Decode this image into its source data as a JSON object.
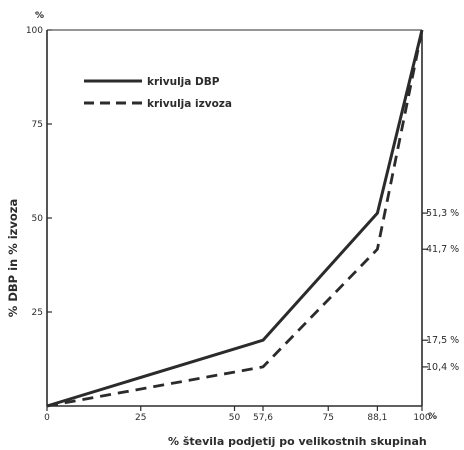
{
  "chart_data": {
    "type": "line",
    "title": "",
    "xlabel": "% števila podjetij po velikostnih skupinah",
    "ylabel": "% DBP in % izvoza",
    "x_unit": "%",
    "y_unit": "%",
    "xlim": [
      0,
      100
    ],
    "ylim": [
      0,
      100
    ],
    "x_ticks": [
      {
        "value": 0,
        "label": "0"
      },
      {
        "value": 25,
        "label": "25"
      },
      {
        "value": 50,
        "label": "50"
      },
      {
        "value": 57.6,
        "label": "57,6"
      },
      {
        "value": 75,
        "label": "75"
      },
      {
        "value": 88.1,
        "label": "88,1"
      },
      {
        "value": 100,
        "label": "100"
      }
    ],
    "y_ticks": [
      {
        "value": 25,
        "label": "25"
      },
      {
        "value": 50,
        "label": "50"
      },
      {
        "value": 75,
        "label": "75"
      },
      {
        "value": 100,
        "label": "100"
      }
    ],
    "right_labels": [
      {
        "value": 51.3,
        "label": "51,3 %"
      },
      {
        "value": 41.7,
        "label": "41,7 %"
      },
      {
        "value": 17.5,
        "label": "17,5 %"
      },
      {
        "value": 10.4,
        "label": "10,4 %"
      }
    ],
    "series": [
      {
        "name": "krivulja DBP",
        "style": "solid",
        "x": [
          0,
          57.6,
          88.1,
          100
        ],
        "y": [
          0,
          17.5,
          51.3,
          100
        ]
      },
      {
        "name": "krivulja izvoza",
        "style": "dashed",
        "x": [
          0,
          57.6,
          88.1,
          100
        ],
        "y": [
          0,
          10.4,
          41.7,
          100
        ]
      }
    ],
    "legend_position": "top-left",
    "grid": false,
    "colors": {
      "ink": "#2b2b2b",
      "background": "#ffffff"
    }
  }
}
